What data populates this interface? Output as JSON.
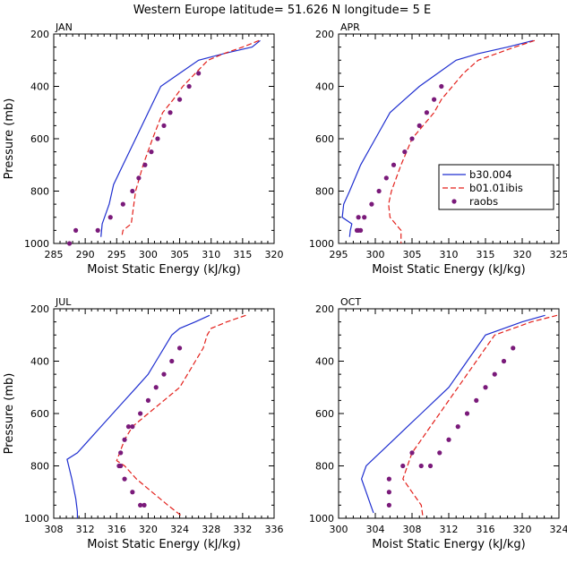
{
  "title": "Western Europe  latitude= 51.626 N longitude= 5 E",
  "colors": {
    "b30": "#1f2fd0",
    "b01": "#e3201b",
    "raobs": "#7a1a7a"
  },
  "legend": [
    {
      "name": "b30.004",
      "style": "solid"
    },
    {
      "name": "b01.01ibis",
      "style": "dashed"
    },
    {
      "name": "raobs",
      "style": "dots"
    }
  ],
  "chart_data": [
    {
      "type": "line",
      "label": "JAN",
      "xlabel": "Moist Static Energy (kJ/kg)",
      "ylabel": "Pressure (mb)",
      "xlim": [
        285,
        320
      ],
      "ylim": [
        200,
        1000
      ],
      "y_inverted": true,
      "xticks": [
        285,
        290,
        295,
        300,
        305,
        310,
        315,
        320
      ],
      "yticks": [
        200,
        400,
        600,
        800,
        1000
      ],
      "series": [
        {
          "name": "b30.004",
          "x": [
            317.8,
            316.5,
            312,
            308,
            305,
            302,
            300,
            298,
            296,
            294.5,
            293.8,
            292.7,
            292.5
          ],
          "y": [
            225,
            250,
            275,
            300,
            350,
            400,
            500,
            600,
            700,
            775,
            850,
            925,
            975
          ]
        },
        {
          "name": "b01.01ibis",
          "x": [
            317.6,
            315,
            312,
            309.5,
            307.5,
            305.5,
            304,
            302.3,
            300.7,
            299.2,
            298,
            297.3,
            296,
            295.8
          ],
          "y": [
            225,
            250,
            275,
            300,
            350,
            400,
            450,
            500,
            600,
            700,
            800,
            925,
            950,
            975
          ]
        },
        {
          "name": "raobs",
          "x": [
            308,
            306.5,
            305,
            303.5,
            302.5,
            301.5,
            300.5,
            299.5,
            298.5,
            297.5,
            296,
            294,
            292,
            288.5,
            287.5
          ],
          "y": [
            350,
            400,
            450,
            500,
            550,
            600,
            650,
            700,
            750,
            800,
            850,
            900,
            950,
            950,
            1000
          ]
        }
      ]
    },
    {
      "type": "line",
      "label": "APR",
      "xlabel": "Moist Static Energy (kJ/kg)",
      "ylabel": "",
      "xlim": [
        295,
        325
      ],
      "ylim": [
        200,
        1000
      ],
      "y_inverted": true,
      "xticks": [
        295,
        300,
        305,
        310,
        315,
        320,
        325
      ],
      "yticks": [
        200,
        400,
        600,
        800,
        1000
      ],
      "series": [
        {
          "name": "b30.004",
          "x": [
            321.5,
            318,
            314,
            311,
            308.5,
            306,
            304,
            302,
            300,
            298,
            296.5,
            295.7,
            295.5,
            296.8,
            296.6,
            296.5
          ],
          "y": [
            225,
            250,
            275,
            300,
            350,
            400,
            450,
            500,
            600,
            700,
            800,
            850,
            900,
            925,
            950,
            975
          ]
        },
        {
          "name": "b01.01ibis",
          "x": [
            321.7,
            319,
            316.5,
            314,
            312,
            310.5,
            309,
            308,
            306.5,
            305,
            303.5,
            302.2,
            301.8,
            302,
            303.5,
            303.5
          ],
          "y": [
            225,
            250,
            275,
            300,
            350,
            400,
            450,
            500,
            550,
            600,
            700,
            800,
            850,
            900,
            950,
            1000
          ]
        },
        {
          "name": "raobs",
          "x": [
            309,
            308,
            307,
            306,
            305,
            304,
            302.5,
            301.5,
            300.5,
            299.5,
            298.5,
            298,
            297.7,
            297.7,
            297.5
          ],
          "y": [
            400,
            450,
            500,
            550,
            600,
            650,
            700,
            750,
            800,
            850,
            900,
            950,
            950,
            900,
            950
          ]
        }
      ]
    },
    {
      "type": "line",
      "label": "JUL",
      "xlabel": "Moist Static Energy (kJ/kg)",
      "ylabel": "Pressure (mb)",
      "xlim": [
        308,
        336
      ],
      "ylim": [
        200,
        1000
      ],
      "y_inverted": true,
      "xticks": [
        308,
        312,
        316,
        320,
        324,
        328,
        332,
        336
      ],
      "yticks": [
        200,
        400,
        600,
        800,
        1000
      ],
      "series": [
        {
          "name": "b30.004",
          "x": [
            327.8,
            326,
            324,
            323,
            322,
            321,
            320,
            318.5,
            317,
            315.5,
            314,
            312.5,
            311,
            309.7,
            310.3,
            310.8,
            311,
            311
          ],
          "y": [
            225,
            250,
            275,
            300,
            350,
            400,
            450,
            500,
            550,
            600,
            650,
            700,
            750,
            775,
            850,
            925,
            975,
            1000
          ]
        },
        {
          "name": "b01.01ibis",
          "x": [
            332.4,
            330,
            328,
            327.5,
            327,
            326,
            325,
            324,
            322,
            320,
            318,
            317,
            316,
            317,
            318.5,
            320.5,
            322.5,
            324.2
          ],
          "y": [
            225,
            250,
            275,
            300,
            350,
            400,
            450,
            500,
            550,
            600,
            650,
            700,
            780,
            800,
            850,
            900,
            950,
            990
          ]
        },
        {
          "name": "raobs",
          "x": [
            324,
            323,
            322,
            321,
            320,
            319,
            318,
            317.5,
            317,
            316.5,
            316.3,
            316.5,
            317,
            318,
            319,
            319.5
          ],
          "y": [
            350,
            400,
            450,
            500,
            550,
            600,
            650,
            650,
            700,
            750,
            800,
            800,
            850,
            900,
            950,
            950
          ]
        }
      ]
    },
    {
      "type": "line",
      "label": "OCT",
      "xlabel": "Moist Static Energy (kJ/kg)",
      "ylabel": "",
      "xlim": [
        300,
        324
      ],
      "ylim": [
        200,
        1000
      ],
      "y_inverted": true,
      "xticks": [
        300,
        304,
        308,
        312,
        316,
        320,
        324
      ],
      "yticks": [
        200,
        400,
        600,
        800,
        1000
      ],
      "series": [
        {
          "name": "b30.004",
          "x": [
            322.5,
            320,
            318,
            316,
            315,
            314,
            313,
            312,
            310.5,
            309,
            307.5,
            306,
            304.5,
            303,
            302.5,
            303,
            303.5,
            303.8
          ],
          "y": [
            225,
            250,
            275,
            300,
            350,
            400,
            450,
            500,
            550,
            600,
            650,
            700,
            750,
            800,
            850,
            900,
            950,
            980
          ]
        },
        {
          "name": "b01.01ibis",
          "x": [
            323.8,
            321,
            319,
            317,
            316,
            315,
            314,
            313,
            312,
            311,
            310,
            309,
            308,
            307.5,
            307,
            307.2,
            308,
            309,
            309.2
          ],
          "y": [
            225,
            250,
            275,
            300,
            350,
            400,
            450,
            500,
            550,
            600,
            650,
            700,
            750,
            800,
            850,
            860,
            900,
            950,
            1000
          ]
        },
        {
          "name": "raobs",
          "x": [
            319,
            318,
            317,
            316,
            315,
            314,
            313,
            312,
            311,
            310,
            309,
            308,
            307,
            305.5,
            305.5,
            305.5
          ],
          "y": [
            350,
            400,
            450,
            500,
            550,
            600,
            650,
            700,
            750,
            800,
            800,
            750,
            800,
            850,
            900,
            950
          ]
        }
      ]
    }
  ]
}
